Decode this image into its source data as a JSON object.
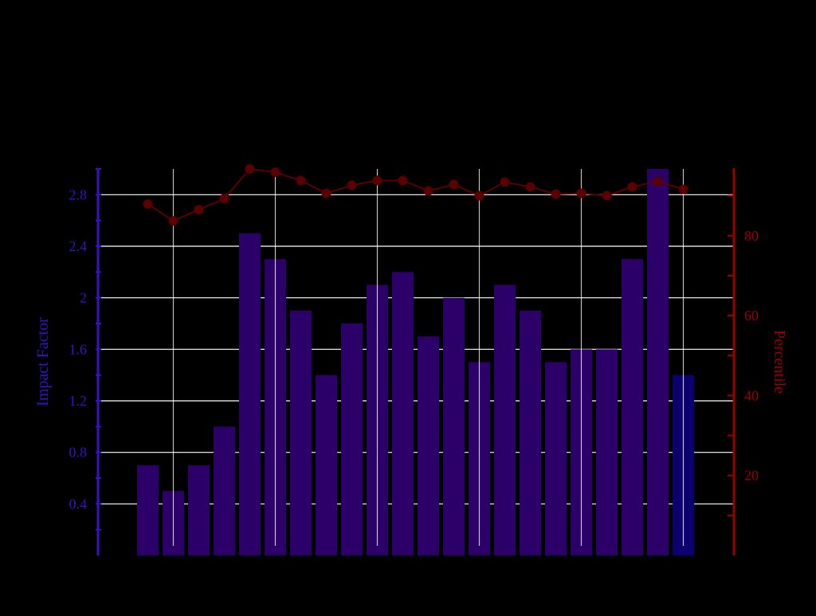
{
  "chart_data": {
    "type": "bar",
    "title": "",
    "xlabel": "",
    "background": "#000000",
    "grid": true,
    "grid_color": "#ffffff",
    "y_left": {
      "label": "Impact Factor",
      "color": "#3b10c8",
      "range": [
        0,
        3.0
      ],
      "ticks": [
        0.4,
        0.8,
        1.2,
        1.6,
        2,
        2.4,
        2.8
      ],
      "tick_labels": [
        "0.4",
        "0.8",
        "1.2",
        "1.6",
        "2",
        "2.4",
        "2.8"
      ]
    },
    "y_right": {
      "label": "Percentile",
      "color": "#9b0000",
      "range": [
        0,
        96.7
      ],
      "ticks": [
        20,
        40,
        60,
        80
      ],
      "tick_labels": [
        "20",
        "40",
        "60",
        "80"
      ]
    },
    "series": [
      {
        "type": "bar",
        "axis": "left",
        "color": "#2b0068",
        "last_bar_color": "#0c0070",
        "values": [
          0.7,
          0.5,
          0.7,
          1.0,
          2.5,
          2.3,
          1.9,
          1.4,
          1.8,
          2.1,
          2.2,
          1.7,
          2.0,
          1.5,
          2.1,
          1.9,
          1.5,
          1.6,
          1.6,
          2.3,
          3.0,
          1.4
        ]
      },
      {
        "type": "line",
        "axis": "right",
        "color": "#5a0000",
        "values": [
          87.9,
          83.7,
          86.5,
          89.3,
          96.7,
          95.9,
          93.8,
          90.6,
          92.6,
          93.8,
          93.8,
          91.2,
          92.8,
          90.0,
          93.4,
          92.2,
          90.4,
          90.6,
          90.0,
          92.2,
          93.6,
          91.6
        ]
      }
    ]
  }
}
